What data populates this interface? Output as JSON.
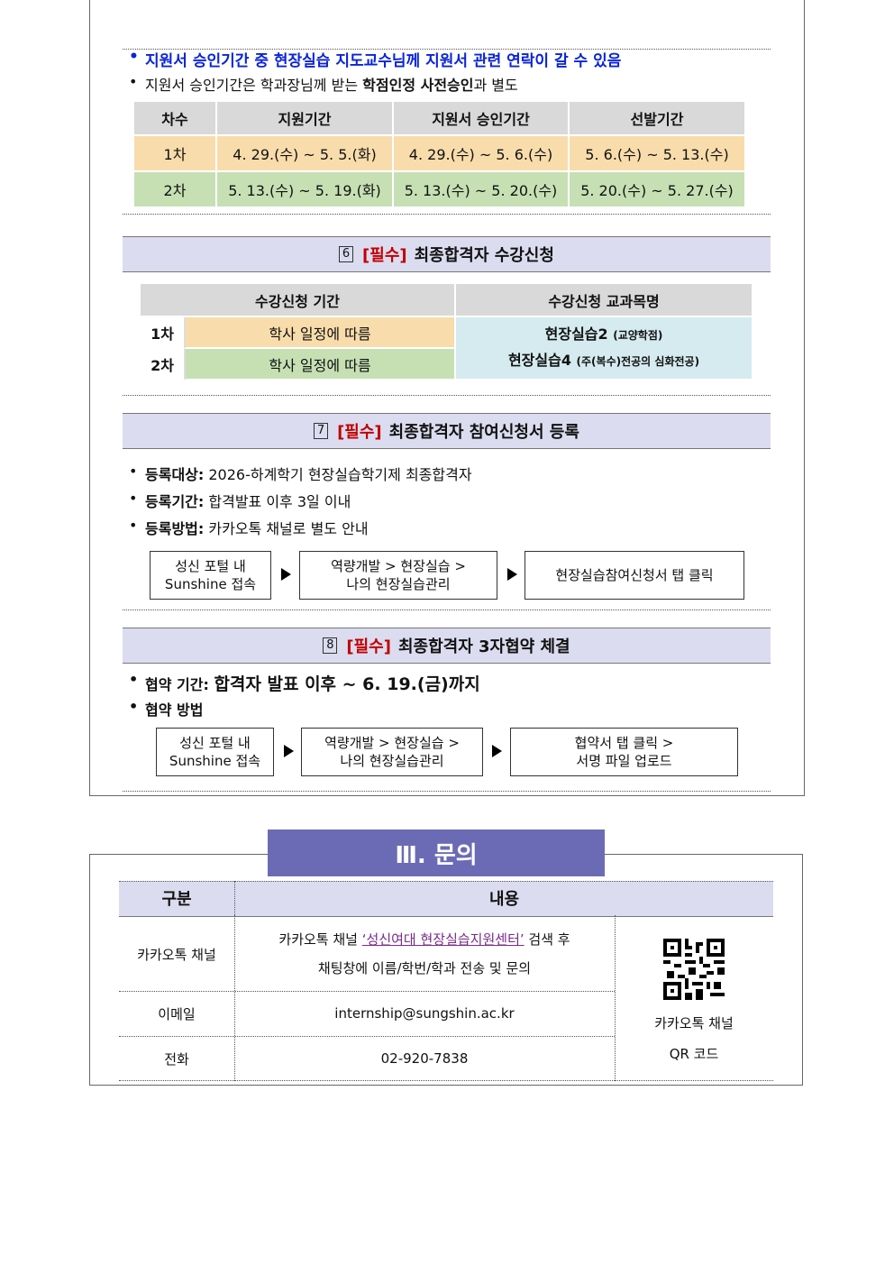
{
  "notes": [
    {
      "text": "지원서 승인기간 중 현장실습 지도교수님께 지원서 관련 연락이 갈 수 있음"
    },
    {
      "before": "지원서 승인기간은 학과장님께 받는 ",
      "bold": "학점인정 사전승인",
      "after": "과 별도"
    }
  ],
  "schedule_table": {
    "header": [
      "차수",
      "지원기간",
      "지원서 승인기간",
      "선발기간"
    ],
    "rows": [
      [
        "1차",
        "4. 29.(수) ~ 5. 5.(화)",
        "4. 29.(수) ~ 5. 6.(수)",
        "5. 6.(수) ~ 5. 13.(수)"
      ],
      [
        "2차",
        "5. 13.(수) ~ 5. 19.(화)",
        "5. 13.(수) ~ 5. 20.(수)",
        "5. 20.(수) ~ 5. 27.(수)"
      ]
    ]
  },
  "section6": {
    "number": "6",
    "tag": "[필수]",
    "title": "최종합격자 수강신청",
    "table": {
      "header": [
        "수강신청 기간",
        "수강신청 교과목명"
      ],
      "rows": [
        [
          "1차",
          "학사 일정에 따름"
        ],
        [
          "2차",
          "학사 일정에 따름"
        ]
      ],
      "courses": [
        {
          "name": "현장실습2",
          "note": "(교양학점)"
        },
        {
          "name": "현장실습4",
          "note": "(주(복수)전공의 심화전공)"
        }
      ]
    }
  },
  "section7": {
    "number": "7",
    "tag": "[필수]",
    "title": "최종합격자 참여신청서 등록",
    "items": [
      {
        "label": "등록대상:",
        "text": "2026-하계학기 현장실습학기제 최종합격자"
      },
      {
        "label": "등록기간:",
        "text": "합격발표 이후 3일 이내"
      },
      {
        "label": "등록방법:",
        "text": "카카오톡 채널로 별도 안내"
      }
    ],
    "flow": [
      [
        "성신 포털 내",
        "Sunshine 접속"
      ],
      [
        "역량개발 > 현장실습 >",
        "나의 현장실습관리"
      ],
      [
        "현장실습참여신청서 탭 클릭"
      ]
    ]
  },
  "section8": {
    "number": "8",
    "tag": "[필수]",
    "title": "최종합격자 3자협약 체결",
    "items": [
      {
        "label": "협약 기간:",
        "text": "합격자 발표 이후 ~ 6. 19.(금)까지"
      },
      {
        "label": "협약 방법"
      }
    ],
    "flow": [
      [
        "성신 포털 내",
        "Sunshine 접속"
      ],
      [
        "역량개발 > 현장실습 >",
        "나의 현장실습관리"
      ],
      [
        "협약서 탭 클릭 >",
        "서명 파일 업로드"
      ]
    ]
  },
  "contact": {
    "title": "Ⅲ. 문의",
    "header": [
      "구분",
      "내용"
    ],
    "kakao": {
      "label": "카카오톡 채널",
      "before": "카카오톡 채널 ",
      "link": "‘성신여대 현장실습지원센터’",
      "after": " 검색 후",
      "line2": "채팅창에 이름/학번/학과 전송 및 문의"
    },
    "email": {
      "label": "이메일",
      "value": "internship@sungshin.ac.kr"
    },
    "phone": {
      "label": "전화",
      "value": "02-920-7838"
    },
    "qr_caption": [
      "카카오톡 채널",
      "QR 코드"
    ]
  }
}
